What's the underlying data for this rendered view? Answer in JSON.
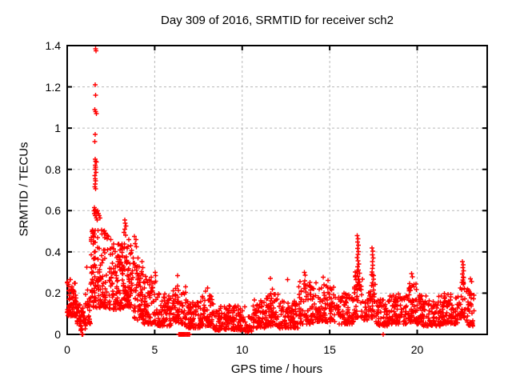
{
  "page": {
    "background": "#ffffff"
  },
  "chart_data": {
    "type": "scatter",
    "title": "Day 309 of 2016, SRMTID for receiver sch2",
    "xlabel": "GPS time / hours",
    "ylabel": "SRMTID / TECUs",
    "xlim": [
      0,
      24
    ],
    "ylim": [
      0,
      1.4
    ],
    "xticks": [
      0,
      5,
      10,
      15,
      20
    ],
    "xtick_labels": [
      "0",
      "5",
      "10",
      "15",
      "20"
    ],
    "yticks": [
      0,
      0.2,
      0.4,
      0.6,
      0.8,
      1,
      1.2,
      1.4
    ],
    "ytick_labels": [
      "0",
      "0.2",
      "0.4",
      "0.6",
      "0.8",
      "1",
      "1.2",
      "1.4"
    ],
    "grid": true,
    "legend": "none",
    "marker": {
      "shape": "plus",
      "color": "#ff0000",
      "size": 6,
      "stroke_width": 1.4
    },
    "axis_color": "#000000",
    "grid_color": "#b8b8b8",
    "seed": 309,
    "band_segments_format": "[x_start, x_end, count, y_min, y_max]",
    "band_segments": [
      [
        0.0,
        0.55,
        70,
        0.09,
        0.27
      ],
      [
        0.55,
        0.75,
        18,
        0.05,
        0.17
      ],
      [
        0.75,
        1.05,
        28,
        0.02,
        0.13
      ],
      [
        1.05,
        1.35,
        30,
        0.05,
        0.28
      ],
      [
        1.35,
        2.3,
        130,
        0.13,
        0.52
      ],
      [
        2.3,
        3.2,
        110,
        0.12,
        0.45
      ],
      [
        3.2,
        3.7,
        75,
        0.13,
        0.46
      ],
      [
        3.7,
        4.35,
        75,
        0.07,
        0.38
      ],
      [
        4.35,
        5.1,
        70,
        0.05,
        0.3
      ],
      [
        5.1,
        6.0,
        75,
        0.04,
        0.2
      ],
      [
        6.0,
        6.8,
        70,
        0.05,
        0.26
      ],
      [
        6.8,
        7.6,
        70,
        0.03,
        0.16
      ],
      [
        7.6,
        8.35,
        70,
        0.04,
        0.2
      ],
      [
        8.35,
        10.2,
        150,
        0.02,
        0.14
      ],
      [
        10.2,
        10.6,
        22,
        0.01,
        0.09
      ],
      [
        10.6,
        11.35,
        65,
        0.03,
        0.17
      ],
      [
        11.35,
        12.1,
        70,
        0.04,
        0.22
      ],
      [
        12.1,
        13.2,
        95,
        0.03,
        0.17
      ],
      [
        13.2,
        14.25,
        90,
        0.05,
        0.26
      ],
      [
        14.25,
        15.35,
        90,
        0.06,
        0.24
      ],
      [
        15.35,
        16.4,
        85,
        0.05,
        0.2
      ],
      [
        16.4,
        16.95,
        45,
        0.08,
        0.34
      ],
      [
        16.95,
        17.3,
        28,
        0.07,
        0.22
      ],
      [
        17.3,
        17.65,
        30,
        0.08,
        0.3
      ],
      [
        17.65,
        18.45,
        60,
        0.04,
        0.17
      ],
      [
        18.45,
        19.45,
        80,
        0.05,
        0.2
      ],
      [
        19.45,
        19.95,
        50,
        0.06,
        0.25
      ],
      [
        19.95,
        21.35,
        115,
        0.04,
        0.19
      ],
      [
        21.35,
        22.4,
        90,
        0.05,
        0.2
      ],
      [
        22.4,
        22.8,
        30,
        0.08,
        0.28
      ],
      [
        22.8,
        23.25,
        40,
        0.04,
        0.24
      ]
    ],
    "outlier_points": [
      [
        1.62,
        1.385
      ],
      [
        1.65,
        1.375
      ],
      [
        1.6,
        1.21
      ],
      [
        1.63,
        1.16
      ],
      [
        1.58,
        1.09
      ],
      [
        1.62,
        1.08
      ],
      [
        1.66,
        1.07
      ],
      [
        1.61,
        0.97
      ],
      [
        1.58,
        0.935
      ],
      [
        1.6,
        0.85
      ],
      [
        1.63,
        0.84
      ],
      [
        1.66,
        0.835
      ],
      [
        1.59,
        0.82
      ],
      [
        1.62,
        0.81
      ],
      [
        1.6,
        0.8
      ],
      [
        1.64,
        0.785
      ],
      [
        1.58,
        0.77
      ],
      [
        1.61,
        0.755
      ],
      [
        1.63,
        0.745
      ],
      [
        1.6,
        0.73
      ],
      [
        1.57,
        0.715
      ],
      [
        1.62,
        0.705
      ],
      [
        1.52,
        0.6
      ],
      [
        1.56,
        0.615
      ],
      [
        1.6,
        0.605
      ],
      [
        1.64,
        0.595
      ],
      [
        1.68,
        0.59
      ],
      [
        1.73,
        0.6
      ],
      [
        1.78,
        0.585
      ],
      [
        1.83,
        0.575
      ],
      [
        1.88,
        0.565
      ],
      [
        1.55,
        0.585
      ],
      [
        1.61,
        0.575
      ],
      [
        1.67,
        0.565
      ],
      [
        1.71,
        0.555
      ],
      [
        3.28,
        0.555
      ],
      [
        3.32,
        0.54
      ],
      [
        3.35,
        0.525
      ],
      [
        3.3,
        0.51
      ],
      [
        3.25,
        0.495
      ],
      [
        3.33,
        0.48
      ],
      [
        2.08,
        0.5
      ],
      [
        2.2,
        0.49
      ],
      [
        2.35,
        0.475
      ],
      [
        2.5,
        0.46
      ],
      [
        2.15,
        0.47
      ],
      [
        3.85,
        0.475
      ],
      [
        3.92,
        0.46
      ],
      [
        3.88,
        0.44
      ],
      [
        3.95,
        0.425
      ],
      [
        16.58,
        0.478
      ],
      [
        16.62,
        0.463
      ],
      [
        16.6,
        0.447
      ],
      [
        16.64,
        0.432
      ],
      [
        16.59,
        0.417
      ],
      [
        16.63,
        0.402
      ],
      [
        16.61,
        0.387
      ],
      [
        16.57,
        0.372
      ],
      [
        16.62,
        0.357
      ],
      [
        16.66,
        0.342
      ],
      [
        16.6,
        0.327
      ],
      [
        16.64,
        0.312
      ],
      [
        16.58,
        0.297
      ],
      [
        16.62,
        0.282
      ],
      [
        16.67,
        0.267
      ],
      [
        16.61,
        0.252
      ],
      [
        17.42,
        0.418
      ],
      [
        17.46,
        0.403
      ],
      [
        17.44,
        0.386
      ],
      [
        17.48,
        0.37
      ],
      [
        17.43,
        0.353
      ],
      [
        17.47,
        0.336
      ],
      [
        17.45,
        0.319
      ],
      [
        17.41,
        0.302
      ],
      [
        17.46,
        0.285
      ],
      [
        17.5,
        0.268
      ],
      [
        17.44,
        0.251
      ],
      [
        17.48,
        0.234
      ],
      [
        22.58,
        0.352
      ],
      [
        22.62,
        0.338
      ],
      [
        22.6,
        0.323
      ],
      [
        22.64,
        0.308
      ],
      [
        22.59,
        0.293
      ],
      [
        22.63,
        0.278
      ],
      [
        22.61,
        0.263
      ],
      [
        22.65,
        0.248
      ],
      [
        1.12,
        0.325
      ],
      [
        5.02,
        0.3
      ],
      [
        5.06,
        0.285
      ],
      [
        6.3,
        0.285
      ],
      [
        11.62,
        0.272
      ],
      [
        12.6,
        0.265
      ],
      [
        13.55,
        0.3
      ],
      [
        13.6,
        0.287
      ],
      [
        14.62,
        0.278
      ],
      [
        14.9,
        0.262
      ],
      [
        19.68,
        0.295
      ],
      [
        19.73,
        0.28
      ],
      [
        23.05,
        0.27
      ],
      [
        23.1,
        0.255
      ],
      [
        8.02,
        0.225
      ],
      [
        7.9,
        0.21
      ]
    ],
    "zero_points": [
      [
        0.84,
        0
      ],
      [
        0.89,
        0
      ],
      [
        6.38,
        0
      ],
      [
        6.42,
        0
      ],
      [
        6.45,
        0
      ],
      [
        6.48,
        0
      ],
      [
        6.52,
        0
      ],
      [
        6.55,
        0
      ],
      [
        6.6,
        0
      ],
      [
        6.65,
        0
      ],
      [
        6.7,
        0
      ],
      [
        6.76,
        0
      ],
      [
        6.82,
        0
      ],
      [
        6.88,
        0
      ],
      [
        6.94,
        0
      ],
      [
        7.0,
        0
      ],
      [
        18.06,
        0
      ]
    ]
  }
}
